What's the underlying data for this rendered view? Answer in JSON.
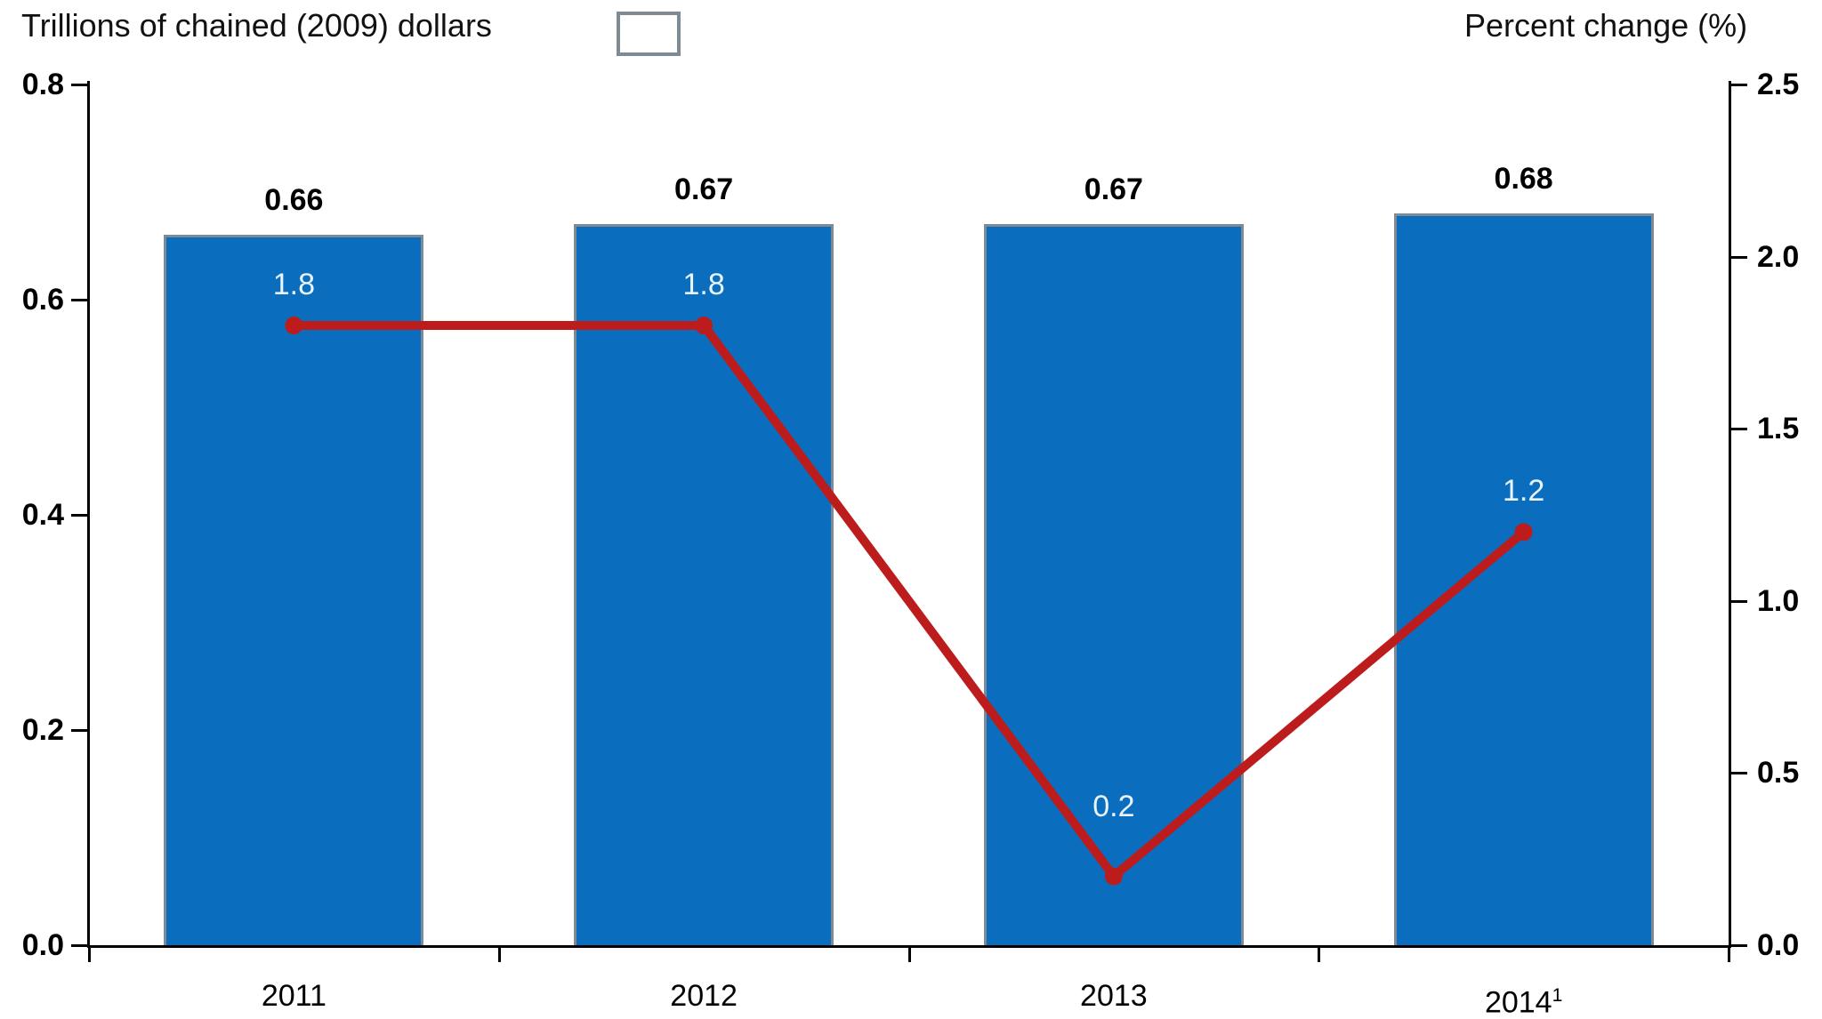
{
  "legend": {
    "bars_label": "Trillions of chained (2009) dollars",
    "line_label": "Percent change (%)"
  },
  "colors": {
    "bar_fill": "#0b6dbe",
    "bar_border": "#7e8a94",
    "line": "#bd1c1d",
    "line_label_text": "#e9f3fb",
    "axis": "#000000"
  },
  "chart_data": {
    "type": "bar+line",
    "categories": [
      {
        "label": "2011",
        "sup": ""
      },
      {
        "label": "2012",
        "sup": ""
      },
      {
        "label": "2013",
        "sup": ""
      },
      {
        "label": "2014",
        "sup": "1"
      }
    ],
    "series": [
      {
        "name": "Trillions of chained (2009) dollars",
        "type": "bar",
        "axis": "left",
        "values": [
          0.66,
          0.67,
          0.67,
          0.68
        ],
        "labels": [
          "0.66",
          "0.67",
          "0.67",
          "0.68"
        ]
      },
      {
        "name": "Percent change (%)",
        "type": "line",
        "axis": "right",
        "values": [
          1.8,
          1.8,
          0.2,
          1.2
        ],
        "labels": [
          "1.8",
          "1.8",
          "0.2",
          "1.2"
        ]
      }
    ],
    "left_axis": {
      "range": [
        0,
        0.8
      ],
      "ticks": [
        0.0,
        0.2,
        0.4,
        0.6,
        0.8
      ],
      "labels": [
        "0.0",
        "0.2",
        "0.4",
        "0.6",
        "0.8"
      ]
    },
    "right_axis": {
      "range": [
        0,
        2.5
      ],
      "ticks": [
        0.0,
        0.5,
        1.0,
        1.5,
        2.0,
        2.5
      ],
      "labels": [
        "0.0",
        "0.5",
        "1.0",
        "1.5",
        "2.0",
        "2.5"
      ]
    },
    "grid": false,
    "legend_position": "top"
  }
}
